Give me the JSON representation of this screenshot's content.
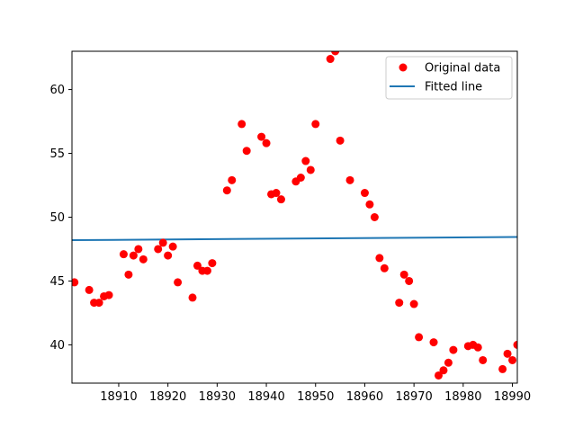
{
  "chart_data": {
    "type": "scatter",
    "title": "",
    "xlabel": "",
    "ylabel": "",
    "xlim": [
      18900.5,
      18991
    ],
    "ylim": [
      37,
      63
    ],
    "xticks": [
      18910,
      18920,
      18930,
      18940,
      18950,
      18960,
      18970,
      18980,
      18990
    ],
    "yticks": [
      40,
      45,
      50,
      55,
      60
    ],
    "grid": false,
    "legend_position": "top-right",
    "series": [
      {
        "name": "Original data",
        "kind": "scatter",
        "color": "#ff0000",
        "points": [
          [
            18901,
            44.9
          ],
          [
            18904,
            44.3
          ],
          [
            18905,
            43.3
          ],
          [
            18906,
            43.3
          ],
          [
            18907,
            43.8
          ],
          [
            18908,
            43.9
          ],
          [
            18911,
            47.1
          ],
          [
            18912,
            45.5
          ],
          [
            18913,
            47.0
          ],
          [
            18914,
            47.5
          ],
          [
            18915,
            46.7
          ],
          [
            18918,
            47.5
          ],
          [
            18919,
            48.0
          ],
          [
            18920,
            47.0
          ],
          [
            18921,
            47.7
          ],
          [
            18922,
            44.9
          ],
          [
            18925,
            43.7
          ],
          [
            18926,
            46.2
          ],
          [
            18927,
            45.8
          ],
          [
            18928,
            45.8
          ],
          [
            18929,
            46.4
          ],
          [
            18932,
            52.1
          ],
          [
            18933,
            52.9
          ],
          [
            18935,
            57.3
          ],
          [
            18936,
            55.2
          ],
          [
            18939,
            56.3
          ],
          [
            18940,
            55.8
          ],
          [
            18941,
            51.8
          ],
          [
            18942,
            51.9
          ],
          [
            18943,
            51.4
          ],
          [
            18946,
            52.8
          ],
          [
            18947,
            53.1
          ],
          [
            18948,
            54.4
          ],
          [
            18949,
            53.7
          ],
          [
            18950,
            57.3
          ],
          [
            18953,
            62.4
          ],
          [
            18954,
            63.0
          ],
          [
            18955,
            56.0
          ],
          [
            18957,
            52.9
          ],
          [
            18960,
            51.9
          ],
          [
            18961,
            51.0
          ],
          [
            18962,
            50.0
          ],
          [
            18963,
            46.8
          ],
          [
            18964,
            46.0
          ],
          [
            18967,
            43.3
          ],
          [
            18968,
            45.5
          ],
          [
            18969,
            45.0
          ],
          [
            18970,
            43.2
          ],
          [
            18971,
            40.6
          ],
          [
            18974,
            40.2
          ],
          [
            18975,
            37.6
          ],
          [
            18976,
            38.0
          ],
          [
            18977,
            38.6
          ],
          [
            18978,
            39.6
          ],
          [
            18981,
            39.9
          ],
          [
            18982,
            40.0
          ],
          [
            18983,
            39.8
          ],
          [
            18984,
            38.8
          ],
          [
            18988,
            38.1
          ],
          [
            18989,
            39.3
          ],
          [
            18990,
            38.8
          ],
          [
            18991,
            40.0
          ]
        ]
      },
      {
        "name": "Fitted line",
        "kind": "line",
        "color": "#1f77b4",
        "x": [
          18900.5,
          18991
        ],
        "y": [
          48.2,
          48.45
        ]
      }
    ]
  }
}
